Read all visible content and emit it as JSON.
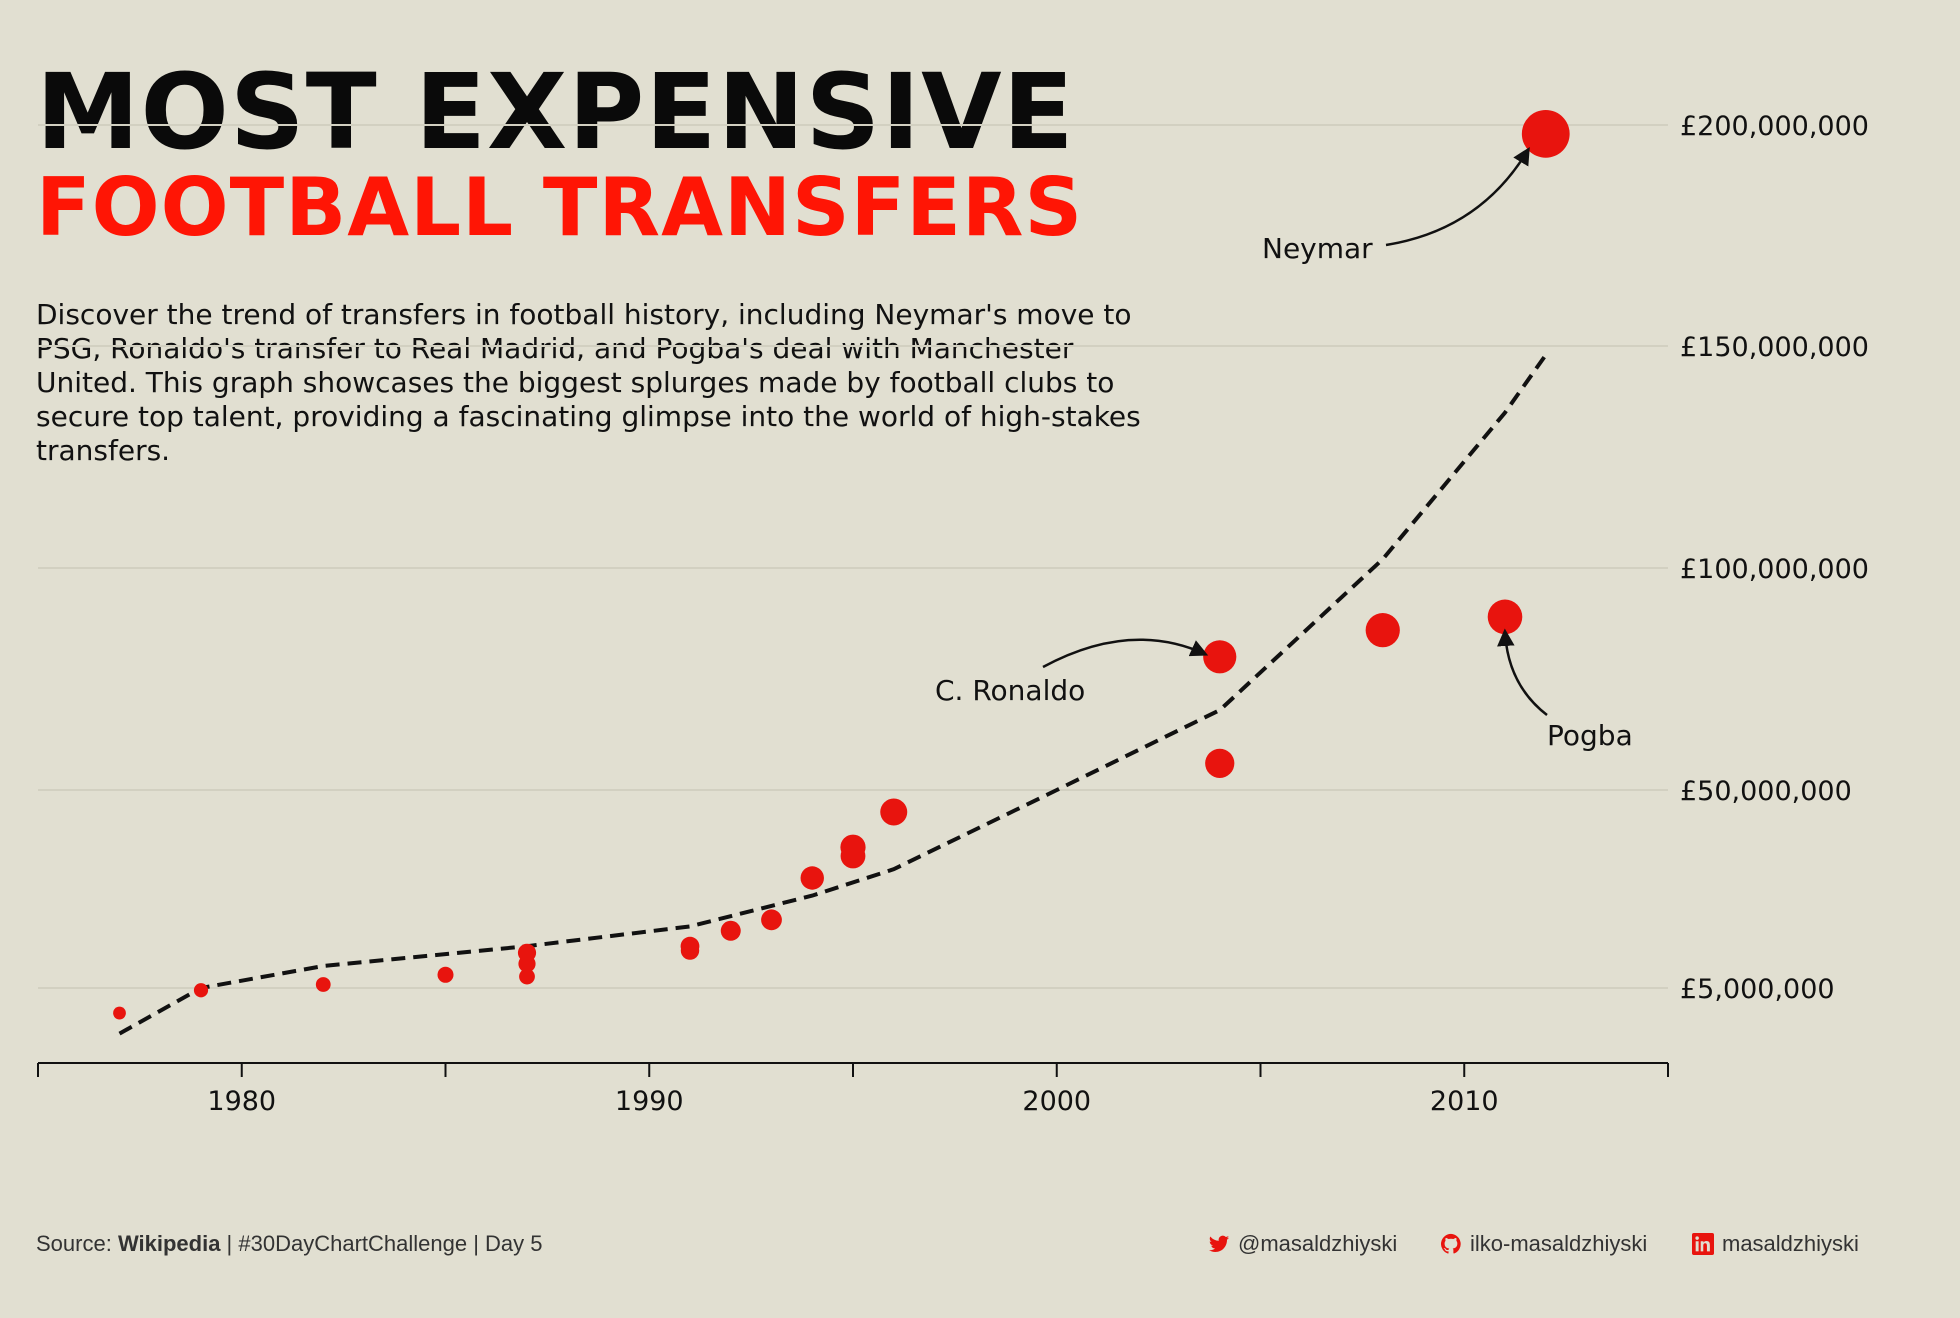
{
  "header": {
    "title_line1": "MOST EXPENSIVE",
    "title_line2": "FOOTBALL TRANSFERS",
    "description": "Discover the trend of transfers in football history, including Neymar's move to PSG, Ronaldo's transfer to Real Madrid, and Pogba's deal with Manchester United. This graph showcases the biggest splurges made by football clubs to secure top talent, providing a fascinating glimpse into the world of high-stakes transfers."
  },
  "colors": {
    "accent": "#ff1505",
    "background": "#e1dfd1",
    "point": "#e8140e",
    "text": "#111111"
  },
  "chart_data": {
    "type": "scatter",
    "x_ticks": [
      "1980",
      "1990",
      "2000",
      "2010"
    ],
    "y_ticks": [
      "£5,000,000",
      "£50,000,000",
      "£100,000,000",
      "£150,000,000",
      "£200,000,000"
    ],
    "xlim": [
      1975,
      2015
    ],
    "points": [
      {
        "x": 1977,
        "y": 2800000
      },
      {
        "x": 1979,
        "y": 4800000
      },
      {
        "x": 1982,
        "y": 5800000
      },
      {
        "x": 1985,
        "y": 8000000
      },
      {
        "x": 1987,
        "y": 7600000
      },
      {
        "x": 1987,
        "y": 10500000
      },
      {
        "x": 1987,
        "y": 13000000
      },
      {
        "x": 1991,
        "y": 13500000
      },
      {
        "x": 1991,
        "y": 14500000
      },
      {
        "x": 1992,
        "y": 18000000
      },
      {
        "x": 1993,
        "y": 20500000
      },
      {
        "x": 1994,
        "y": 30000000
      },
      {
        "x": 1995,
        "y": 35000000
      },
      {
        "x": 1995,
        "y": 37000000
      },
      {
        "x": 1996,
        "y": 45000000
      },
      {
        "x": 2004,
        "y": 56000000
      },
      {
        "x": 2004,
        "y": 80000000
      },
      {
        "x": 2008,
        "y": 86000000
      },
      {
        "x": 2011,
        "y": 89000000
      },
      {
        "x": 2012,
        "y": 198000000
      }
    ],
    "trend": [
      {
        "x": 1977,
        "y": 1000000
      },
      {
        "x": 1979,
        "y": 5000000
      },
      {
        "x": 1982,
        "y": 10000000
      },
      {
        "x": 1987,
        "y": 14500000
      },
      {
        "x": 1991,
        "y": 19000000
      },
      {
        "x": 1994,
        "y": 26000000
      },
      {
        "x": 1996,
        "y": 32000000
      },
      {
        "x": 2000,
        "y": 50000000
      },
      {
        "x": 2004,
        "y": 68000000
      },
      {
        "x": 2008,
        "y": 102000000
      },
      {
        "x": 2011,
        "y": 135000000
      },
      {
        "x": 2012,
        "y": 148000000
      }
    ],
    "annotations": [
      {
        "label": "Neymar",
        "x": 2012,
        "y": 198000000
      },
      {
        "label": "C. Ronaldo",
        "x": 2004,
        "y": 80000000
      },
      {
        "label": "Pogba",
        "x": 2011,
        "y": 89000000
      }
    ],
    "grid": true
  },
  "footer": {
    "source_prefix": "Source: ",
    "source_name": "Wikipedia",
    "source_suffix": " | #30DayChartChallenge | Day 5",
    "twitter": "@masaldzhiyski",
    "github": "ilko-masaldzhiyski",
    "linkedin": "masaldzhiyski"
  }
}
